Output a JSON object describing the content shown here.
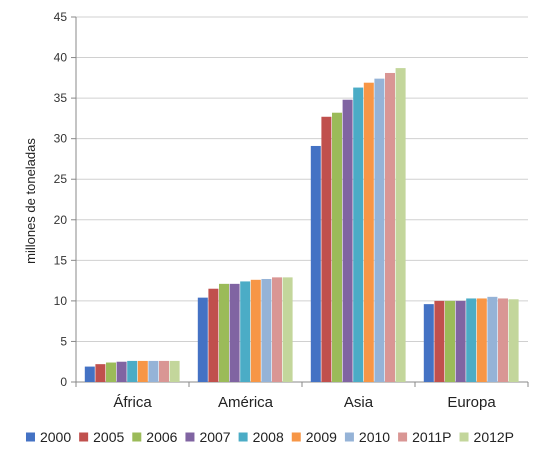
{
  "chart_data": {
    "type": "bar",
    "title": "",
    "xlabel": "",
    "ylabel": "millones de toneladas",
    "ylim": [
      0,
      45
    ],
    "yticks": [
      0,
      5,
      10,
      15,
      20,
      25,
      30,
      35,
      40,
      45
    ],
    "grid": true,
    "legend_position": "bottom",
    "categories": [
      "África",
      "América",
      "Asia",
      "Europa"
    ],
    "series": [
      {
        "name": "2000",
        "color": "#4472C4",
        "values": [
          1.9,
          10.4,
          29.1,
          9.6
        ]
      },
      {
        "name": "2005",
        "color": "#C0504D",
        "values": [
          2.2,
          11.5,
          32.7,
          10.0
        ]
      },
      {
        "name": "2006",
        "color": "#9BBB59",
        "values": [
          2.4,
          12.1,
          33.2,
          10.0
        ]
      },
      {
        "name": "2007",
        "color": "#8064A2",
        "values": [
          2.5,
          12.1,
          34.8,
          10.0
        ]
      },
      {
        "name": "2008",
        "color": "#4BACC6",
        "values": [
          2.6,
          12.4,
          36.3,
          10.3
        ]
      },
      {
        "name": "2009",
        "color": "#F79646",
        "values": [
          2.6,
          12.6,
          36.9,
          10.3
        ]
      },
      {
        "name": "2010",
        "color": "#95B3D7",
        "values": [
          2.6,
          12.7,
          37.4,
          10.5
        ]
      },
      {
        "name": "2011P",
        "color": "#D99694",
        "values": [
          2.6,
          12.9,
          38.1,
          10.3
        ]
      },
      {
        "name": "2012P",
        "color": "#C3D69B",
        "values": [
          2.6,
          12.9,
          38.7,
          10.2
        ]
      }
    ]
  }
}
